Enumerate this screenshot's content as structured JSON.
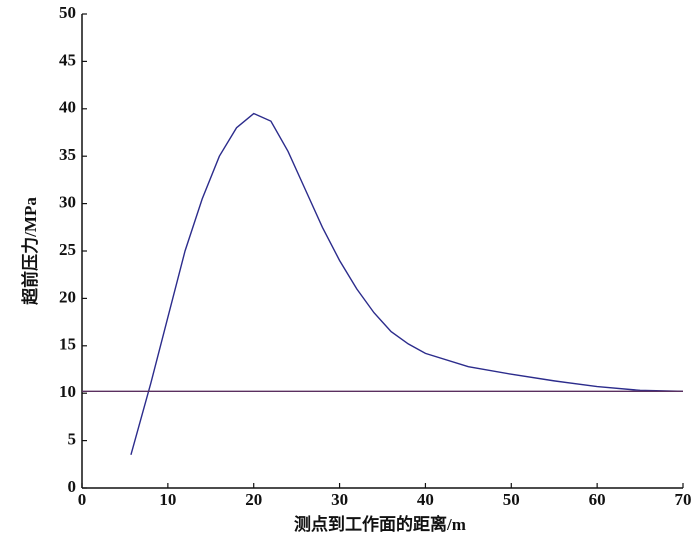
{
  "chart_data": {
    "type": "line",
    "x_label": "测点到工作面的距离/m",
    "y_label": "超前压力/MPa",
    "series": [
      {
        "color": "#2c2c8c",
        "x": [
          5.7,
          8,
          10,
          12,
          14,
          16,
          18,
          20,
          22,
          24,
          26,
          28,
          30,
          32,
          34,
          36,
          38,
          40,
          45,
          50,
          55,
          60,
          65,
          70
        ],
        "values": [
          3.5,
          11,
          18,
          25,
          30.5,
          35,
          38,
          39.5,
          38.7,
          35.5,
          31.5,
          27.5,
          24,
          21,
          18.5,
          16.5,
          15.2,
          14.2,
          12.8,
          12,
          11.3,
          10.7,
          10.3,
          10.2
        ]
      },
      {
        "color": "#5a2f5f",
        "x": [
          0,
          70
        ],
        "values": [
          10.2,
          10.2
        ]
      }
    ],
    "xlim": [
      0,
      70
    ],
    "xticks": [
      0,
      10,
      20,
      30,
      40,
      50,
      60,
      70
    ],
    "ylim": [
      0,
      50
    ],
    "yticks": [
      0,
      5,
      10,
      15,
      20,
      25,
      30,
      35,
      40,
      45,
      50
    ]
  }
}
